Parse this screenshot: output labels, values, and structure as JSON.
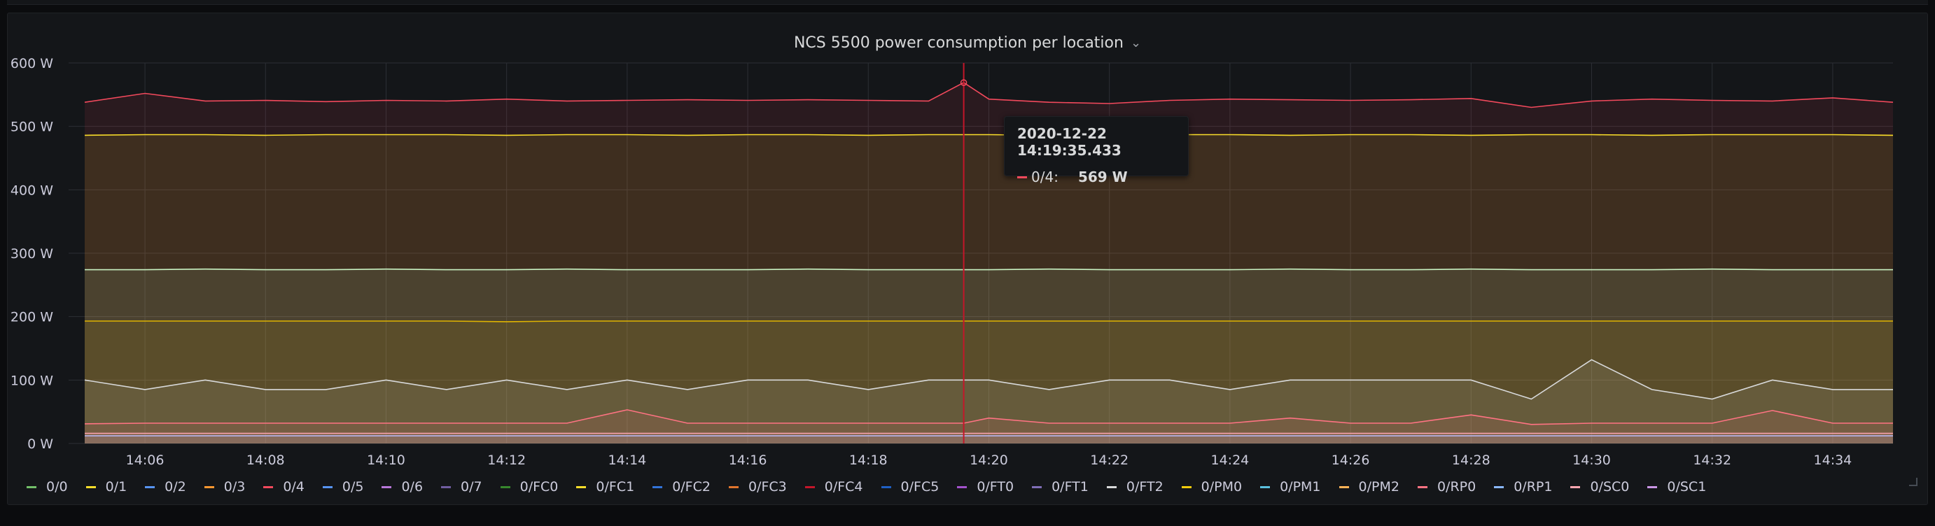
{
  "panel": {
    "title": "NCS 5500 power consumption per location",
    "chevron_icon": "chevron-down-icon"
  },
  "tooltip": {
    "time": "2020-12-22 14:19:35.433",
    "series": "0/4:",
    "value": "569 W",
    "color": "#f2495c"
  },
  "chart_data": {
    "type": "area",
    "title": "NCS 5500 power consumption per location",
    "xlabel": "",
    "ylabel": "",
    "x_ticks": [
      "14:06",
      "14:08",
      "14:10",
      "14:12",
      "14:14",
      "14:16",
      "14:18",
      "14:20",
      "14:22",
      "14:24",
      "14:26",
      "14:28",
      "14:30",
      "14:32",
      "14:34"
    ],
    "y_ticks": [
      "0 W",
      "100 W",
      "200 W",
      "300 W",
      "400 W",
      "500 W",
      "600 W"
    ],
    "ylim": [
      0,
      600
    ],
    "xlim": [
      "14:04:44",
      "14:35:00"
    ],
    "grid": true,
    "legend_position": "bottom-left",
    "cursor_time": "14:19:35",
    "x": [
      "14:05:00",
      "14:06:00",
      "14:07:00",
      "14:08:00",
      "14:09:00",
      "14:10:00",
      "14:11:00",
      "14:12:00",
      "14:13:00",
      "14:14:00",
      "14:15:00",
      "14:16:00",
      "14:17:00",
      "14:18:00",
      "14:19:00",
      "14:19:35",
      "14:20:00",
      "14:21:00",
      "14:22:00",
      "14:23:00",
      "14:24:00",
      "14:25:00",
      "14:26:00",
      "14:27:00",
      "14:28:00",
      "14:29:00",
      "14:30:00",
      "14:31:00",
      "14:32:00",
      "14:33:00",
      "14:34:00",
      "14:35:00"
    ],
    "series": [
      {
        "name": "0/4",
        "color": "#f2495c",
        "values": [
          538,
          552,
          540,
          541,
          539,
          541,
          540,
          543,
          540,
          541,
          542,
          541,
          542,
          541,
          540,
          569,
          543,
          538,
          536,
          541,
          543,
          542,
          541,
          542,
          544,
          530,
          540,
          543,
          541,
          540,
          545,
          538
        ]
      },
      {
        "name": "0/PM0",
        "color": "#fade2a",
        "values": [
          486,
          487,
          487,
          486,
          487,
          487,
          487,
          486,
          487,
          487,
          486,
          487,
          487,
          486,
          487,
          487,
          487,
          486,
          487,
          487,
          487,
          486,
          487,
          487,
          486,
          487,
          487,
          486,
          487,
          487,
          487,
          486
        ]
      },
      {
        "name": "0/FT2",
        "color": "#c8f2c2",
        "values": [
          274,
          274,
          275,
          274,
          274,
          275,
          274,
          274,
          275,
          274,
          274,
          274,
          275,
          274,
          274,
          274,
          274,
          275,
          274,
          274,
          274,
          275,
          274,
          274,
          275,
          274,
          274,
          274,
          275,
          274,
          274,
          274
        ]
      },
      {
        "name": "0/1",
        "color": "#e0b400",
        "values": [
          193,
          193,
          193,
          193,
          193,
          193,
          193,
          192,
          193,
          193,
          193,
          193,
          193,
          193,
          193,
          193,
          193,
          193,
          193,
          193,
          193,
          193,
          193,
          193,
          193,
          193,
          193,
          193,
          193,
          193,
          193,
          193
        ]
      },
      {
        "name": "0/FT1",
        "color": "#d8d9da",
        "values": [
          100,
          85,
          100,
          85,
          85,
          100,
          85,
          100,
          85,
          100,
          85,
          100,
          100,
          85,
          100,
          100,
          100,
          85,
          100,
          100,
          85,
          100,
          100,
          100,
          100,
          70,
          132,
          85,
          70,
          100,
          85,
          85
        ]
      },
      {
        "name": "0/RP0",
        "color": "#ff7383",
        "values": [
          31,
          32,
          32,
          32,
          32,
          32,
          32,
          32,
          32,
          53,
          32,
          32,
          32,
          32,
          32,
          32,
          40,
          32,
          32,
          32,
          32,
          40,
          32,
          32,
          45,
          30,
          32,
          32,
          32,
          52,
          32,
          32
        ]
      },
      {
        "name": "0/SC0",
        "color": "#ffa6b0",
        "values": [
          16,
          16,
          16,
          16,
          16,
          16,
          16,
          16,
          16,
          16,
          16,
          16,
          16,
          16,
          16,
          16,
          16,
          16,
          16,
          16,
          16,
          16,
          16,
          16,
          16,
          16,
          16,
          16,
          16,
          16,
          16,
          16
        ]
      },
      {
        "name": "0/SC1",
        "color": "#b7b7f0",
        "values": [
          12,
          12,
          12,
          12,
          12,
          12,
          12,
          12,
          12,
          12,
          12,
          12,
          12,
          12,
          12,
          12,
          12,
          12,
          12,
          12,
          12,
          12,
          12,
          12,
          12,
          12,
          12,
          12,
          12,
          12,
          12,
          12
        ]
      }
    ]
  },
  "legend": [
    {
      "name": "0/0",
      "color": "#73bf69"
    },
    {
      "name": "0/1",
      "color": "#fade2a"
    },
    {
      "name": "0/2",
      "color": "#5794f2"
    },
    {
      "name": "0/3",
      "color": "#ff9830"
    },
    {
      "name": "0/4",
      "color": "#f2495c"
    },
    {
      "name": "0/5",
      "color": "#5794f2"
    },
    {
      "name": "0/6",
      "color": "#b877d9"
    },
    {
      "name": "0/7",
      "color": "#705da0"
    },
    {
      "name": "0/FC0",
      "color": "#37872d"
    },
    {
      "name": "0/FC1",
      "color": "#fade2a"
    },
    {
      "name": "0/FC2",
      "color": "#3274d9"
    },
    {
      "name": "0/FC3",
      "color": "#e0752d"
    },
    {
      "name": "0/FC4",
      "color": "#c4162a"
    },
    {
      "name": "0/FC5",
      "color": "#1f60c4"
    },
    {
      "name": "0/FT0",
      "color": "#a352cc"
    },
    {
      "name": "0/FT1",
      "color": "#806eb7"
    },
    {
      "name": "0/FT2",
      "color": "#d8d9da"
    },
    {
      "name": "0/PM0",
      "color": "#f2cc0c"
    },
    {
      "name": "0/PM1",
      "color": "#5bc0de"
    },
    {
      "name": "0/PM2",
      "color": "#ffb357"
    },
    {
      "name": "0/RP0",
      "color": "#ff7383"
    },
    {
      "name": "0/RP1",
      "color": "#8ab8ff"
    },
    {
      "name": "0/SC0",
      "color": "#ffa6b0"
    },
    {
      "name": "0/SC1",
      "color": "#ca95e5"
    }
  ]
}
